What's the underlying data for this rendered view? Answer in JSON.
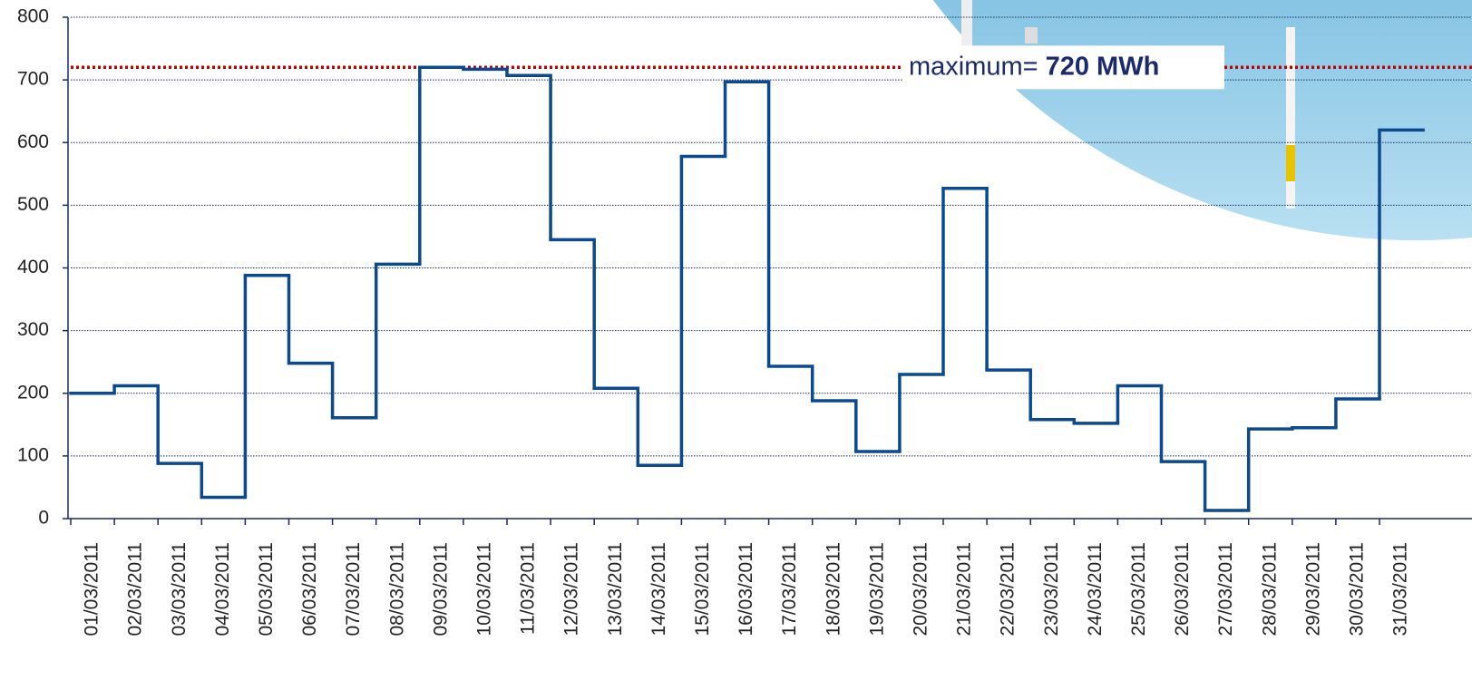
{
  "chart_data": {
    "type": "step",
    "categories": [
      "01/03/2011",
      "02/03/2011",
      "03/03/2011",
      "04/03/2011",
      "05/03/2011",
      "06/03/2011",
      "07/03/2011",
      "08/03/2011",
      "09/03/2011",
      "10/03/2011",
      "11/03/2011",
      "12/03/2011",
      "13/03/2011",
      "14/03/2011",
      "15/03/2011",
      "16/03/2011",
      "17/03/2011",
      "18/03/2011",
      "19/03/2011",
      "20/03/2011",
      "21/03/2011",
      "22/03/2011",
      "23/03/2011",
      "24/03/2011",
      "25/03/2011",
      "26/03/2011",
      "27/03/2011",
      "28/03/2011",
      "29/03/2011",
      "30/03/2011",
      "31/03/2011"
    ],
    "series": [
      {
        "color": "#0b4a8f",
        "values": [
          200,
          212,
          88,
          34,
          388,
          248,
          161,
          406,
          720,
          717,
          707,
          445,
          208,
          85,
          578,
          697,
          243,
          188,
          107,
          230,
          527,
          237,
          158,
          152,
          212,
          91,
          13,
          143,
          145,
          191,
          620
        ]
      }
    ],
    "ylim": [
      0,
      800
    ],
    "yticks": [
      0,
      100,
      200,
      300,
      400,
      500,
      600,
      700,
      800
    ],
    "grid": true,
    "threshold": {
      "value": 720,
      "prefix": "maximum=",
      "label": "720 MWh",
      "color": "#c00000"
    }
  }
}
